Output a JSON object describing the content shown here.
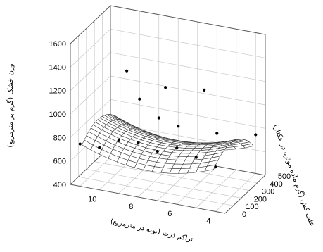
{
  "chart_data": {
    "type": "surface3d",
    "zlabel": "وزن خشک (گرم بر مترمربع)",
    "xlabel": "تراکم ذرت (بوته در مترمربع)",
    "ylabel": "علف کش (گرم ماده موثره در هکتار)",
    "x_ticks": [
      "10",
      "8",
      "6",
      "4"
    ],
    "y_ticks": [
      "0",
      "100",
      "200",
      "300",
      "400",
      "500"
    ],
    "z_ticks": [
      "400",
      "600",
      "800",
      "1000",
      "1200",
      "1400",
      "1600"
    ],
    "xlim": [
      3.5,
      11.5
    ],
    "ylim": [
      0,
      500
    ],
    "zlim": [
      400,
      1600
    ],
    "points": [
      {
        "x": 11,
        "y": 0,
        "z": 760
      },
      {
        "x": 10,
        "y": 0,
        "z": 760
      },
      {
        "x": 9,
        "y": 0,
        "z": 850
      },
      {
        "x": 9,
        "y": 100,
        "z": 1380
      },
      {
        "x": 8,
        "y": 0,
        "z": 860
      },
      {
        "x": 7,
        "y": 0,
        "z": 820
      },
      {
        "x": 7,
        "y": 100,
        "z": 1300
      },
      {
        "x": 6,
        "y": 0,
        "z": 880
      },
      {
        "x": 5,
        "y": 0,
        "z": 830
      },
      {
        "x": 5,
        "y": 100,
        "z": 1340
      },
      {
        "x": 4,
        "y": 0,
        "z": 780
      },
      {
        "x": 10,
        "y": 500,
        "z": 850
      },
      {
        "x": 9,
        "y": 500,
        "z": 720
      },
      {
        "x": 8,
        "y": 500,
        "z": 680
      },
      {
        "x": 6,
        "y": 500,
        "z": 680
      },
      {
        "x": 4,
        "y": 500,
        "z": 730
      }
    ],
    "surface": {
      "c0": 640,
      "cy": 0.9,
      "cyy": 0.0023,
      "cxx": 10,
      "xc": 7.5
    }
  }
}
